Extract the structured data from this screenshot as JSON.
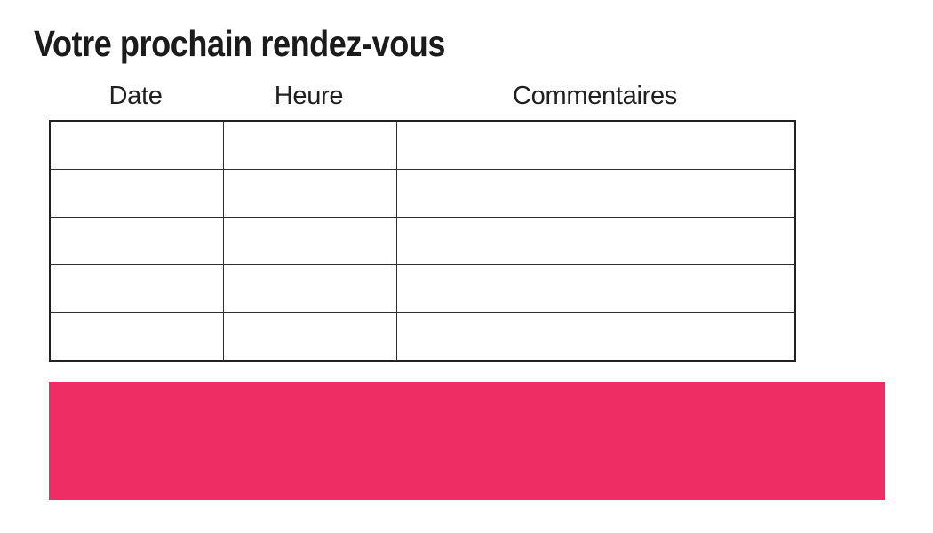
{
  "page": {
    "title": "Votre prochain rendez-vous"
  },
  "appointment_table": {
    "headers": [
      "Date",
      "Heure",
      "Commentaires"
    ],
    "rows": [
      {
        "date": "",
        "heure": "",
        "commentaires": ""
      },
      {
        "date": "",
        "heure": "",
        "commentaires": ""
      },
      {
        "date": "",
        "heure": "",
        "commentaires": ""
      },
      {
        "date": "",
        "heure": "",
        "commentaires": ""
      },
      {
        "date": "",
        "heure": "",
        "commentaires": ""
      }
    ]
  },
  "banner": {
    "color": "#ED2D64"
  }
}
